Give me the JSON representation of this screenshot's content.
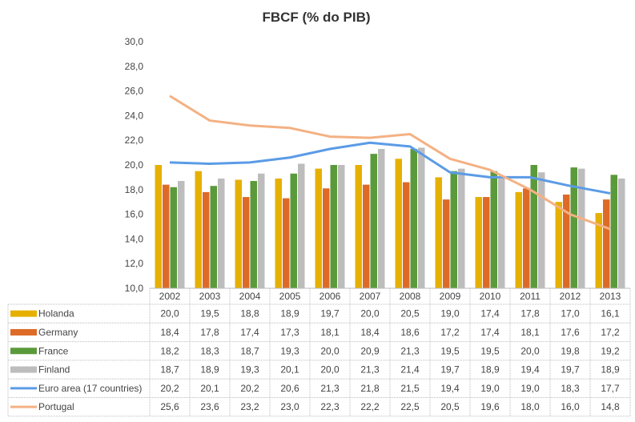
{
  "chart_data": {
    "type": "bar",
    "title": "FBCF (% do PIB)",
    "categories": [
      "2002",
      "2003",
      "2004",
      "2005",
      "2006",
      "2007",
      "2008",
      "2009",
      "2010",
      "2011",
      "2012",
      "2013"
    ],
    "ylim": [
      10,
      30
    ],
    "yticks": [
      "10,0",
      "12,0",
      "14,0",
      "16,0",
      "18,0",
      "20,0",
      "22,0",
      "24,0",
      "26,0",
      "28,0",
      "30,0"
    ],
    "grid": false,
    "legend": "data-table",
    "series": [
      {
        "name": "Holanda",
        "kind": "bar",
        "color": "#E6B000",
        "values": [
          20.0,
          19.5,
          18.8,
          18.9,
          19.7,
          20.0,
          20.5,
          19.0,
          17.4,
          17.8,
          17.0,
          16.1
        ]
      },
      {
        "name": "Germany",
        "kind": "bar",
        "color": "#DD6A27",
        "values": [
          18.4,
          17.8,
          17.4,
          17.3,
          18.1,
          18.4,
          18.6,
          17.2,
          17.4,
          18.1,
          17.6,
          17.2
        ]
      },
      {
        "name": "France",
        "kind": "bar",
        "color": "#5B9A3B",
        "values": [
          18.2,
          18.3,
          18.7,
          19.3,
          20.0,
          20.9,
          21.3,
          19.5,
          19.5,
          20.0,
          19.8,
          19.2
        ]
      },
      {
        "name": "Finland",
        "kind": "bar",
        "color": "#BDBDBD",
        "values": [
          18.7,
          18.9,
          19.3,
          20.1,
          20.0,
          21.3,
          21.4,
          19.7,
          18.9,
          19.4,
          19.7,
          18.9
        ]
      },
      {
        "name": "Euro area (17 countries)",
        "kind": "line",
        "color": "#5B9BE6",
        "values": [
          20.2,
          20.1,
          20.2,
          20.6,
          21.3,
          21.8,
          21.5,
          19.4,
          19.0,
          19.0,
          18.3,
          17.7
        ]
      },
      {
        "name": "Portugal",
        "kind": "line",
        "color": "#F4B183",
        "values": [
          25.6,
          23.6,
          23.2,
          23.0,
          22.3,
          22.2,
          22.5,
          20.5,
          19.6,
          18.0,
          16.0,
          14.8
        ]
      }
    ]
  }
}
